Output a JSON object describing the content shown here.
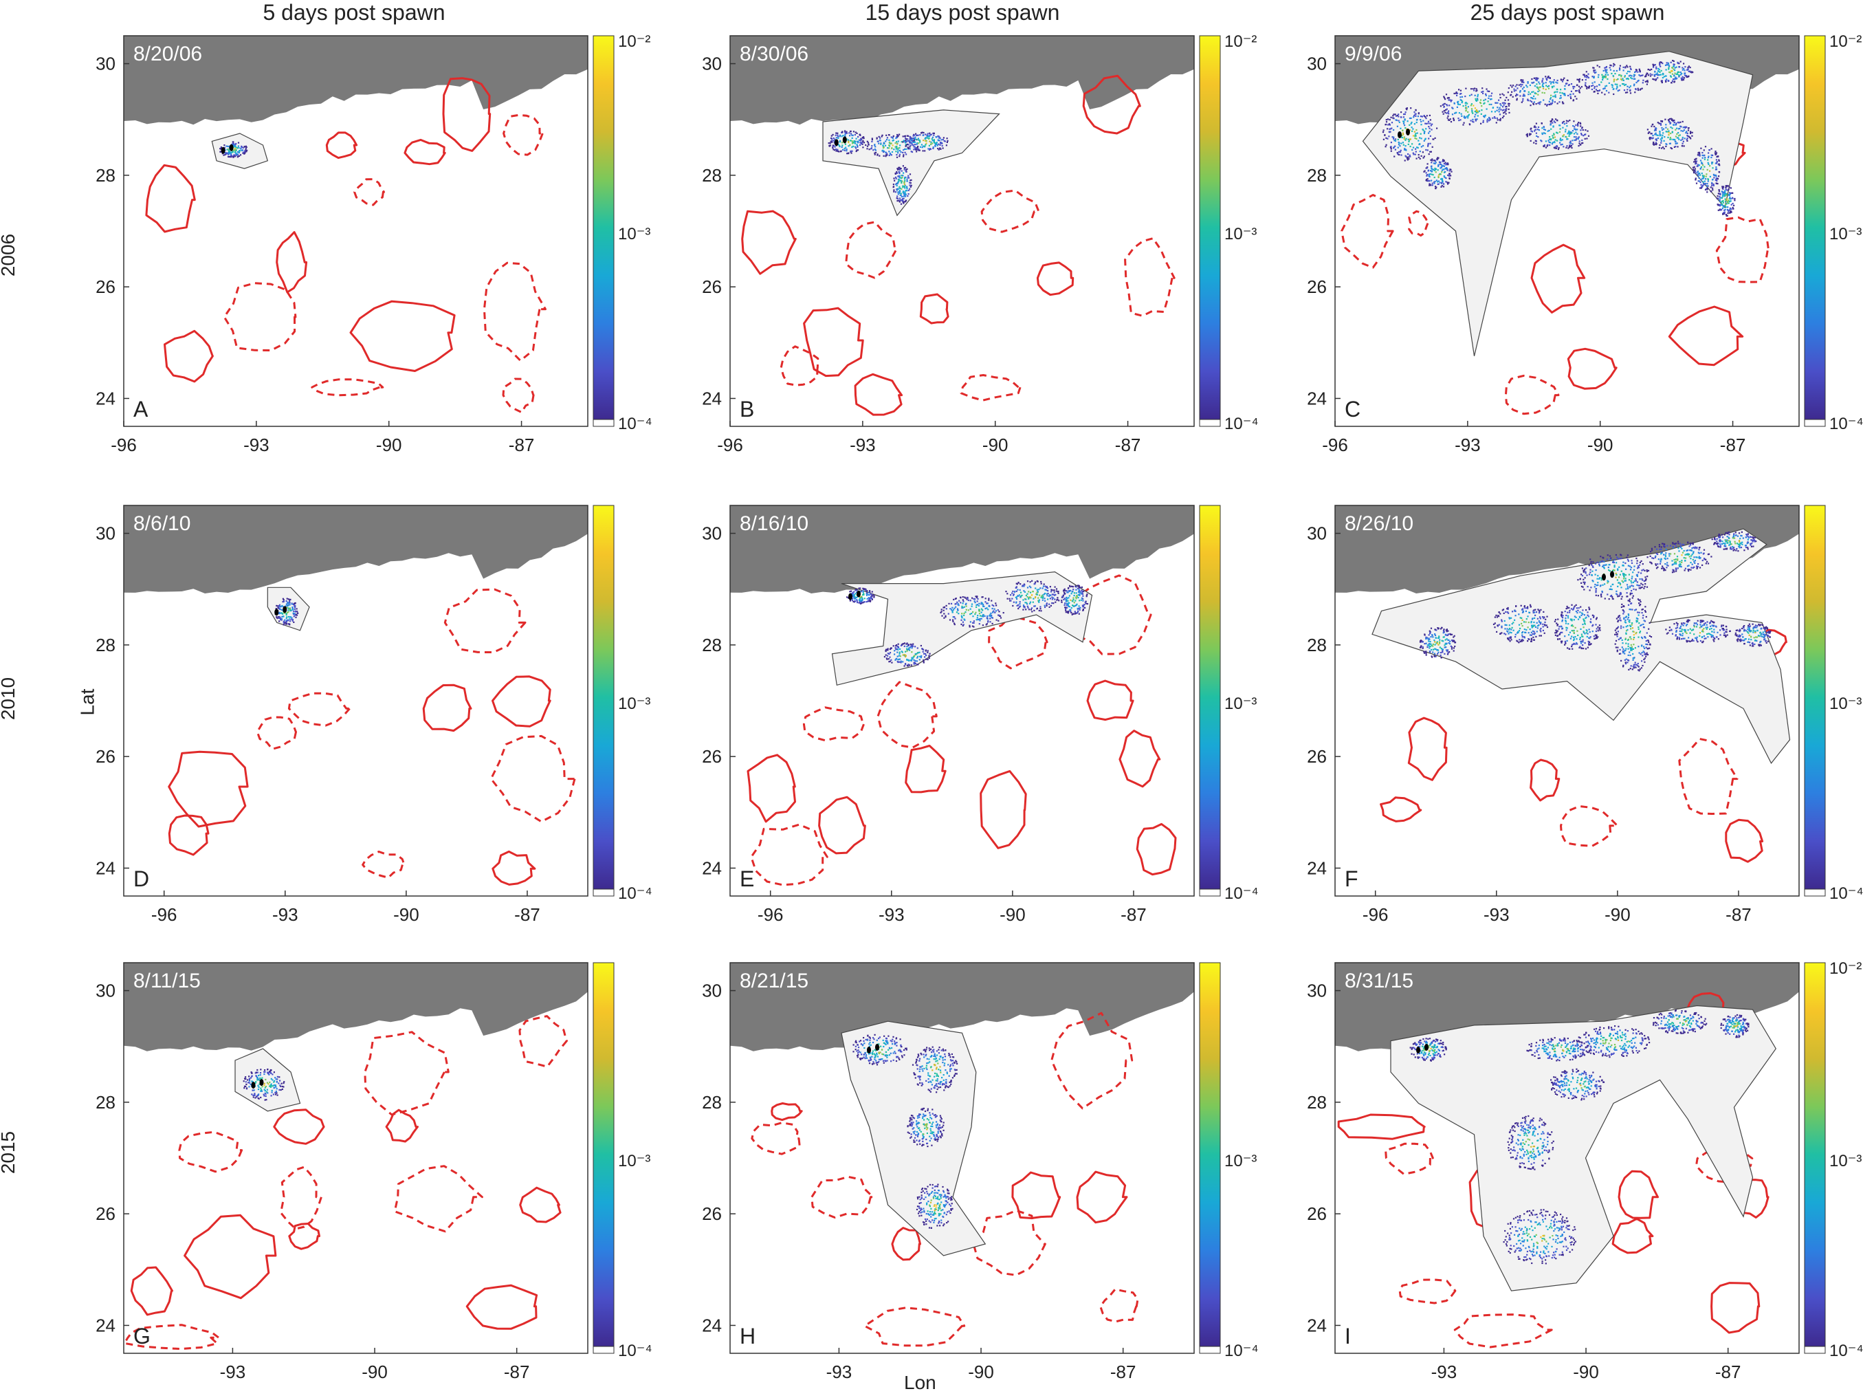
{
  "column_titles": [
    "5 days post spawn",
    "15 days post spawn",
    "25 days post spawn"
  ],
  "row_labels": [
    "2006",
    "2010",
    "2015"
  ],
  "xlabel": "Lon",
  "ylabel": "Lat",
  "colors": {
    "land": "#7a7a7a",
    "eddy": "#e02a2a",
    "hull_fill": "#f2f2f2",
    "hull_stroke": "#444444"
  },
  "colorbar_stops": [
    "#3e2a8f",
    "#4a4fc8",
    "#2d7fe0",
    "#19a8d6",
    "#20bfa4",
    "#7cc85a",
    "#d0ba30",
    "#f5c528",
    "#f8f81a"
  ],
  "chart_data": [
    {
      "type": "heatmap",
      "panel": "A",
      "year": "2006",
      "date": "8/20/06",
      "xlim": [
        -96,
        -85.5
      ],
      "ylim": [
        23.5,
        30.5
      ],
      "xticks": [
        "-96",
        "-93",
        "-90",
        "-87"
      ],
      "yticks": [
        "24",
        "26",
        "28",
        "30"
      ],
      "colorbar_ticks": [
        "10⁻²",
        "10⁻³",
        "10⁻⁴"
      ]
    },
    {
      "type": "heatmap",
      "panel": "B",
      "year": "2006",
      "date": "8/30/06",
      "xlim": [
        -96,
        -85.5
      ],
      "ylim": [
        23.5,
        30.5
      ],
      "xticks": [
        "-96",
        "-93",
        "-90",
        "-87"
      ],
      "yticks": [
        "24",
        "26",
        "28",
        "30"
      ],
      "colorbar_ticks": [
        "10⁻²",
        "10⁻³",
        "10⁻⁴"
      ]
    },
    {
      "type": "heatmap",
      "panel": "C",
      "year": "2006",
      "date": "9/9/06",
      "xlim": [
        -96,
        -85.5
      ],
      "ylim": [
        23.5,
        30.5
      ],
      "xticks": [
        "-96",
        "-93",
        "-90",
        "-87"
      ],
      "yticks": [
        "24",
        "26",
        "28",
        "30"
      ],
      "colorbar_ticks": [
        "10⁻²",
        "10⁻³",
        "10⁻⁴"
      ]
    },
    {
      "type": "heatmap",
      "panel": "D",
      "year": "2010",
      "date": "8/6/10",
      "xlim": [
        -97,
        -85.5
      ],
      "ylim": [
        23.5,
        30.5
      ],
      "xticks": [
        "-96",
        "-93",
        "-90",
        "-87"
      ],
      "yticks": [
        "24",
        "26",
        "28",
        "30"
      ],
      "colorbar_ticks": [
        "10⁻³",
        "10⁻⁴"
      ]
    },
    {
      "type": "heatmap",
      "panel": "E",
      "year": "2010",
      "date": "8/16/10",
      "xlim": [
        -97,
        -85.5
      ],
      "ylim": [
        23.5,
        30.5
      ],
      "xticks": [
        "-96",
        "-93",
        "-90",
        "-87"
      ],
      "yticks": [
        "24",
        "26",
        "28",
        "30"
      ],
      "colorbar_ticks": [
        "10⁻³",
        "10⁻⁴"
      ]
    },
    {
      "type": "heatmap",
      "panel": "F",
      "year": "2010",
      "date": "8/26/10",
      "xlim": [
        -97,
        -85.5
      ],
      "ylim": [
        23.5,
        30.5
      ],
      "xticks": [
        "-96",
        "-93",
        "-90",
        "-87"
      ],
      "yticks": [
        "24",
        "26",
        "28",
        "30"
      ],
      "colorbar_ticks": [
        "10⁻³",
        "10⁻⁴"
      ]
    },
    {
      "type": "heatmap",
      "panel": "G",
      "year": "2015",
      "date": "8/11/15",
      "xlim": [
        -95.3,
        -85.5
      ],
      "ylim": [
        23.5,
        30.5
      ],
      "xticks": [
        "-93",
        "-90",
        "-87"
      ],
      "yticks": [
        "24",
        "26",
        "28",
        "30"
      ],
      "colorbar_ticks": [
        "10⁻³",
        "10⁻⁴"
      ]
    },
    {
      "type": "heatmap",
      "panel": "H",
      "year": "2015",
      "date": "8/21/15",
      "xlim": [
        -95.3,
        -85.5
      ],
      "ylim": [
        23.5,
        30.5
      ],
      "xticks": [
        "-93",
        "-90",
        "-87"
      ],
      "yticks": [
        "24",
        "26",
        "28",
        "30"
      ],
      "colorbar_ticks": [
        "10⁻³",
        "10⁻⁴"
      ]
    },
    {
      "type": "heatmap",
      "panel": "I",
      "year": "2015",
      "date": "8/31/15",
      "xlim": [
        -95.3,
        -85.5
      ],
      "ylim": [
        23.5,
        30.5
      ],
      "xticks": [
        "-93",
        "-90",
        "-87"
      ],
      "yticks": [
        "24",
        "26",
        "28",
        "30"
      ],
      "colorbar_ticks": [
        "10⁻²",
        "10⁻³",
        "10⁻⁴"
      ]
    }
  ]
}
